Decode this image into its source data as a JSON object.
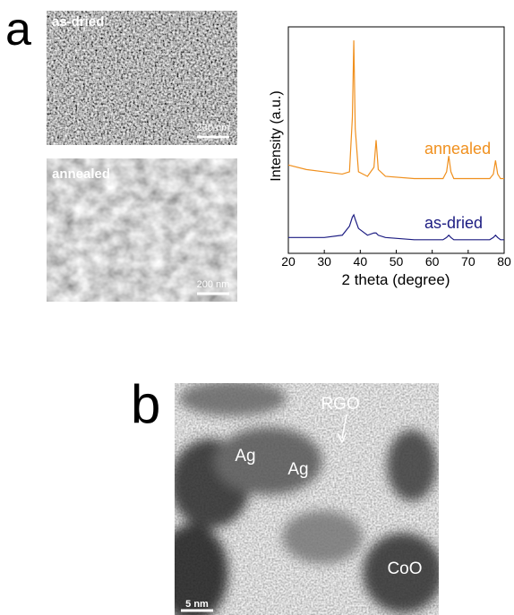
{
  "figure": {
    "panel_a": {
      "label": "a",
      "images": [
        {
          "label": "as-dried",
          "scale_bar": "200 nm"
        },
        {
          "label": "annealed",
          "scale_bar": "200 nm"
        }
      ]
    },
    "panel_b": {
      "label": "b",
      "annotations": [
        "RGO",
        "Ag",
        "Ag",
        "CoO"
      ],
      "scale_bar": "5 nm"
    }
  },
  "chart_data": {
    "type": "line",
    "xlabel": "2 theta (degree)",
    "ylabel": "Intensity (a.u.)",
    "x": [
      20,
      25,
      30,
      35,
      37,
      37.8,
      38.2,
      38.6,
      39.5,
      42,
      43.8,
      44.4,
      45,
      47,
      55,
      63,
      64,
      64.6,
      65.2,
      66,
      70,
      76,
      77,
      77.6,
      78.2,
      79,
      80
    ],
    "series": [
      {
        "name": "annealed",
        "color": "#f0901e",
        "values": [
          39,
          37,
          36,
          35,
          36,
          60,
          94,
          55,
          36,
          34,
          38,
          50,
          37,
          34,
          33,
          33,
          36,
          43,
          36,
          33,
          33,
          33,
          35,
          41,
          35,
          33,
          33
        ]
      },
      {
        "name": "as-dried",
        "color": "#1c1c82",
        "values": [
          7,
          7,
          7,
          8,
          12,
          16,
          17,
          15,
          11,
          8,
          9,
          9,
          8,
          7,
          6,
          6,
          7,
          8,
          7,
          6,
          6,
          6,
          7,
          8,
          7,
          6,
          6
        ]
      }
    ],
    "xlim": [
      20,
      80
    ],
    "xticks": [
      20,
      30,
      40,
      50,
      60,
      70,
      80
    ],
    "ylim": [
      0,
      100
    ]
  }
}
